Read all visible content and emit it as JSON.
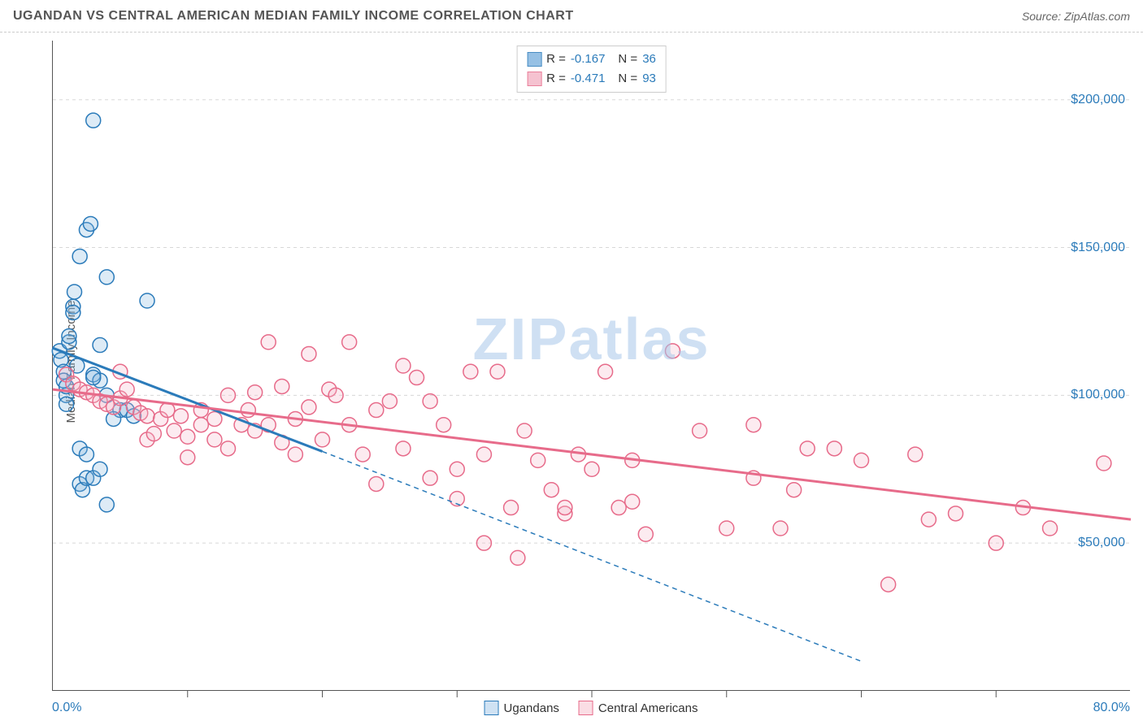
{
  "title": "UGANDAN VS CENTRAL AMERICAN MEDIAN FAMILY INCOME CORRELATION CHART",
  "source": "Source: ZipAtlas.com",
  "ylabel": "Median Family Income",
  "watermark": "ZIPatlas",
  "plot": {
    "xlim": [
      0,
      80
    ],
    "ylim": [
      0,
      220000
    ],
    "yticks": [
      50000,
      100000,
      150000,
      200000
    ],
    "ytick_labels": [
      "$50,000",
      "$100,000",
      "$150,000",
      "$200,000"
    ],
    "xticks": [
      10,
      20,
      30,
      40,
      50,
      60,
      70
    ],
    "grid_color": "#d8d8d8",
    "grid_dash": "4,4",
    "axis_color": "#555555",
    "tick_labels_color": "#2b7bba",
    "marker_radius": 9,
    "marker_stroke_width": 1.5,
    "marker_fill_opacity": 0.28
  },
  "xaxis": {
    "left_label": "0.0%",
    "right_label": "80.0%"
  },
  "series": [
    {
      "name": "Ugandans",
      "color": "#2b7bba",
      "fill": "#84b6e0",
      "r_label": "R = ",
      "r_value": "-0.167",
      "n_label": "N = ",
      "n_value": "36",
      "trend": {
        "x1": 0,
        "y1": 116000,
        "x2": 20,
        "y2": 81000,
        "solid_until_x": 20,
        "dash_to_x": 60,
        "dash_to_y": 10000
      },
      "points": [
        [
          0.5,
          115000
        ],
        [
          0.6,
          112000
        ],
        [
          0.8,
          108000
        ],
        [
          0.8,
          105000
        ],
        [
          1,
          100000
        ],
        [
          1,
          97000
        ],
        [
          1,
          103000
        ],
        [
          1.2,
          118000
        ],
        [
          1.2,
          120000
        ],
        [
          1.5,
          130000
        ],
        [
          1.5,
          128000
        ],
        [
          1.6,
          135000
        ],
        [
          1.8,
          110000
        ],
        [
          2,
          147000
        ],
        [
          2.5,
          156000
        ],
        [
          2.8,
          158000
        ],
        [
          3,
          193000
        ],
        [
          2,
          70000
        ],
        [
          2.2,
          68000
        ],
        [
          2.5,
          72000
        ],
        [
          3,
          72000
        ],
        [
          3.5,
          75000
        ],
        [
          4,
          63000
        ],
        [
          3.5,
          117000
        ],
        [
          4,
          140000
        ],
        [
          5,
          95000
        ],
        [
          5.5,
          95000
        ],
        [
          6,
          93000
        ],
        [
          7,
          132000
        ],
        [
          3,
          107000
        ],
        [
          3.5,
          105000
        ],
        [
          4,
          100000
        ],
        [
          4.5,
          92000
        ],
        [
          2,
          82000
        ],
        [
          2.5,
          80000
        ],
        [
          3,
          106000
        ]
      ]
    },
    {
      "name": "Central Americans",
      "color": "#e76b8a",
      "fill": "#f4b8c8",
      "r_label": "R = ",
      "r_value": "-0.471",
      "n_label": "N = ",
      "n_value": "93",
      "trend": {
        "x1": 0,
        "y1": 102000,
        "x2": 80,
        "y2": 58000,
        "solid_until_x": 80
      },
      "points": [
        [
          1,
          107000
        ],
        [
          1.5,
          104000
        ],
        [
          2,
          102000
        ],
        [
          2.5,
          101000
        ],
        [
          3,
          100000
        ],
        [
          3.5,
          98000
        ],
        [
          4,
          97000
        ],
        [
          4.5,
          96000
        ],
        [
          5,
          99000
        ],
        [
          5,
          108000
        ],
        [
          5.5,
          102000
        ],
        [
          6,
          96000
        ],
        [
          6.5,
          94000
        ],
        [
          7,
          93000
        ],
        [
          7,
          85000
        ],
        [
          7.5,
          87000
        ],
        [
          8,
          92000
        ],
        [
          8.5,
          95000
        ],
        [
          9,
          88000
        ],
        [
          9.5,
          93000
        ],
        [
          10,
          86000
        ],
        [
          10,
          79000
        ],
        [
          11,
          95000
        ],
        [
          11,
          90000
        ],
        [
          12,
          92000
        ],
        [
          12,
          85000
        ],
        [
          13,
          100000
        ],
        [
          13,
          82000
        ],
        [
          14,
          90000
        ],
        [
          14.5,
          95000
        ],
        [
          15,
          101000
        ],
        [
          15,
          88000
        ],
        [
          16,
          118000
        ],
        [
          16,
          90000
        ],
        [
          17,
          103000
        ],
        [
          17,
          84000
        ],
        [
          18,
          92000
        ],
        [
          18,
          80000
        ],
        [
          19,
          96000
        ],
        [
          19,
          114000
        ],
        [
          20,
          85000
        ],
        [
          20.5,
          102000
        ],
        [
          21,
          100000
        ],
        [
          22,
          118000
        ],
        [
          22,
          90000
        ],
        [
          23,
          80000
        ],
        [
          24,
          95000
        ],
        [
          24,
          70000
        ],
        [
          25,
          98000
        ],
        [
          26,
          110000
        ],
        [
          26,
          82000
        ],
        [
          27,
          106000
        ],
        [
          28,
          72000
        ],
        [
          28,
          98000
        ],
        [
          29,
          90000
        ],
        [
          30,
          75000
        ],
        [
          30,
          65000
        ],
        [
          31,
          108000
        ],
        [
          32,
          80000
        ],
        [
          32,
          50000
        ],
        [
          33,
          108000
        ],
        [
          34,
          62000
        ],
        [
          34.5,
          45000
        ],
        [
          35,
          88000
        ],
        [
          36,
          78000
        ],
        [
          37,
          68000
        ],
        [
          38,
          60000
        ],
        [
          38,
          62000
        ],
        [
          39,
          80000
        ],
        [
          40,
          75000
        ],
        [
          41,
          108000
        ],
        [
          42,
          62000
        ],
        [
          43,
          64000
        ],
        [
          43,
          78000
        ],
        [
          44,
          53000
        ],
        [
          46,
          115000
        ],
        [
          48,
          88000
        ],
        [
          50,
          55000
        ],
        [
          52,
          90000
        ],
        [
          52,
          72000
        ],
        [
          54,
          55000
        ],
        [
          55,
          68000
        ],
        [
          56,
          82000
        ],
        [
          58,
          82000
        ],
        [
          60,
          78000
        ],
        [
          62,
          36000
        ],
        [
          64,
          80000
        ],
        [
          65,
          58000
        ],
        [
          67,
          60000
        ],
        [
          70,
          50000
        ],
        [
          72,
          62000
        ],
        [
          78,
          77000
        ],
        [
          74,
          55000
        ]
      ]
    }
  ],
  "legend_bottom": [
    {
      "label": "Ugandans",
      "fill": "#cfe2f3",
      "stroke": "#2b7bba"
    },
    {
      "label": "Central Americans",
      "fill": "#fadde4",
      "stroke": "#e76b8a"
    }
  ]
}
